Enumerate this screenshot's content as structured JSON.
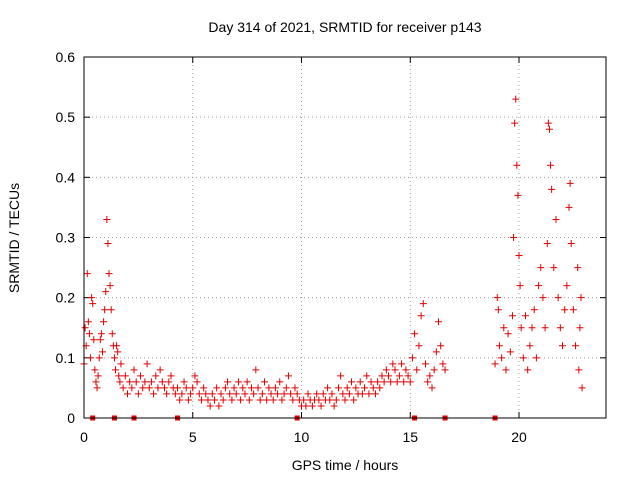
{
  "chart_data": {
    "type": "scatter",
    "title": "Day 314 of 2021, SRMTID for receiver p143",
    "xlabel": "GPS time / hours",
    "ylabel": "SRMTID / TECUs",
    "xlim": [
      0,
      24
    ],
    "ylim": [
      0,
      0.6
    ],
    "xticks": [
      0,
      5,
      10,
      15,
      20
    ],
    "xtick_labels": [
      "0",
      "5",
      "10",
      "15",
      "20"
    ],
    "yticks": [
      0,
      0.1,
      0.2,
      0.3,
      0.4,
      0.5,
      0.6
    ],
    "ytick_labels": [
      "0",
      "0.1",
      "0.2",
      "0.3",
      "0.4",
      "0.5",
      "0.6"
    ],
    "grid": true,
    "marker": "+",
    "color": "#e00000",
    "series": [
      {
        "name": "SRMTID",
        "points": [
          [
            0.0,
            0.09
          ],
          [
            0.05,
            0.15
          ],
          [
            0.1,
            0.12
          ],
          [
            0.15,
            0.24
          ],
          [
            0.2,
            0.16
          ],
          [
            0.25,
            0.14
          ],
          [
            0.3,
            0.1
          ],
          [
            0.35,
            0.2
          ],
          [
            0.4,
            0.19
          ],
          [
            0.45,
            0.13
          ],
          [
            0.5,
            0.08
          ],
          [
            0.55,
            0.06
          ],
          [
            0.6,
            0.05
          ],
          [
            0.65,
            0.07
          ],
          [
            0.7,
            0.1
          ],
          [
            0.75,
            0.13
          ],
          [
            0.8,
            0.14
          ],
          [
            0.85,
            0.11
          ],
          [
            0.9,
            0.16
          ],
          [
            0.95,
            0.18
          ],
          [
            1.0,
            0.21
          ],
          [
            1.05,
            0.33
          ],
          [
            1.1,
            0.29
          ],
          [
            1.15,
            0.24
          ],
          [
            1.2,
            0.22
          ],
          [
            1.25,
            0.18
          ],
          [
            1.3,
            0.14
          ],
          [
            1.35,
            0.12
          ],
          [
            1.4,
            0.1
          ],
          [
            1.45,
            0.08
          ],
          [
            1.5,
            0.12
          ],
          [
            1.55,
            0.11
          ],
          [
            1.6,
            0.07
          ],
          [
            1.65,
            0.06
          ],
          [
            1.7,
            0.09
          ],
          [
            1.8,
            0.05
          ],
          [
            1.9,
            0.07
          ],
          [
            2.0,
            0.04
          ],
          [
            2.1,
            0.06
          ],
          [
            2.2,
            0.05
          ],
          [
            2.3,
            0.08
          ],
          [
            2.4,
            0.06
          ],
          [
            2.5,
            0.04
          ],
          [
            2.6,
            0.07
          ],
          [
            2.7,
            0.05
          ],
          [
            2.8,
            0.06
          ],
          [
            2.9,
            0.09
          ],
          [
            3.0,
            0.05
          ],
          [
            3.1,
            0.06
          ],
          [
            3.2,
            0.04
          ],
          [
            3.3,
            0.07
          ],
          [
            3.4,
            0.05
          ],
          [
            3.5,
            0.08
          ],
          [
            3.6,
            0.06
          ],
          [
            3.7,
            0.05
          ],
          [
            3.8,
            0.04
          ],
          [
            3.9,
            0.06
          ],
          [
            4.0,
            0.07
          ],
          [
            4.1,
            0.05
          ],
          [
            4.2,
            0.04
          ],
          [
            4.3,
            0.05
          ],
          [
            4.4,
            0.03
          ],
          [
            4.5,
            0.04
          ],
          [
            4.6,
            0.06
          ],
          [
            4.7,
            0.05
          ],
          [
            4.8,
            0.03
          ],
          [
            4.9,
            0.04
          ],
          [
            5.0,
            0.05
          ],
          [
            5.1,
            0.07
          ],
          [
            5.2,
            0.06
          ],
          [
            5.3,
            0.04
          ],
          [
            5.4,
            0.03
          ],
          [
            5.5,
            0.05
          ],
          [
            5.6,
            0.04
          ],
          [
            5.7,
            0.03
          ],
          [
            5.8,
            0.02
          ],
          [
            5.9,
            0.04
          ],
          [
            6.0,
            0.03
          ],
          [
            6.1,
            0.05
          ],
          [
            6.2,
            0.02
          ],
          [
            6.3,
            0.04
          ],
          [
            6.4,
            0.03
          ],
          [
            6.5,
            0.05
          ],
          [
            6.6,
            0.06
          ],
          [
            6.7,
            0.04
          ],
          [
            6.8,
            0.03
          ],
          [
            6.9,
            0.05
          ],
          [
            7.0,
            0.04
          ],
          [
            7.1,
            0.06
          ],
          [
            7.2,
            0.03
          ],
          [
            7.3,
            0.05
          ],
          [
            7.4,
            0.04
          ],
          [
            7.5,
            0.06
          ],
          [
            7.6,
            0.03
          ],
          [
            7.7,
            0.05
          ],
          [
            7.8,
            0.04
          ],
          [
            7.9,
            0.08
          ],
          [
            8.0,
            0.05
          ],
          [
            8.1,
            0.03
          ],
          [
            8.2,
            0.04
          ],
          [
            8.3,
            0.06
          ],
          [
            8.4,
            0.03
          ],
          [
            8.5,
            0.05
          ],
          [
            8.6,
            0.04
          ],
          [
            8.7,
            0.03
          ],
          [
            8.8,
            0.05
          ],
          [
            8.9,
            0.04
          ],
          [
            9.0,
            0.06
          ],
          [
            9.1,
            0.03
          ],
          [
            9.2,
            0.04
          ],
          [
            9.3,
            0.05
          ],
          [
            9.4,
            0.07
          ],
          [
            9.5,
            0.04
          ],
          [
            9.6,
            0.03
          ],
          [
            9.7,
            0.05
          ],
          [
            9.8,
            0.04
          ],
          [
            9.9,
            0.03
          ],
          [
            10.0,
            0.02
          ],
          [
            10.1,
            0.03
          ],
          [
            10.2,
            0.02
          ],
          [
            10.3,
            0.04
          ],
          [
            10.4,
            0.03
          ],
          [
            10.5,
            0.02
          ],
          [
            10.6,
            0.03
          ],
          [
            10.7,
            0.04
          ],
          [
            10.8,
            0.03
          ],
          [
            10.9,
            0.02
          ],
          [
            11.0,
            0.04
          ],
          [
            11.1,
            0.03
          ],
          [
            11.2,
            0.05
          ],
          [
            11.3,
            0.03
          ],
          [
            11.4,
            0.04
          ],
          [
            11.5,
            0.02
          ],
          [
            11.6,
            0.03
          ],
          [
            11.7,
            0.05
          ],
          [
            11.8,
            0.07
          ],
          [
            11.9,
            0.04
          ],
          [
            12.0,
            0.03
          ],
          [
            12.1,
            0.05
          ],
          [
            12.2,
            0.04
          ],
          [
            12.3,
            0.06
          ],
          [
            12.4,
            0.03
          ],
          [
            12.5,
            0.05
          ],
          [
            12.6,
            0.04
          ],
          [
            12.7,
            0.06
          ],
          [
            12.8,
            0.04
          ],
          [
            12.9,
            0.05
          ],
          [
            13.0,
            0.07
          ],
          [
            13.1,
            0.04
          ],
          [
            13.2,
            0.06
          ],
          [
            13.3,
            0.05
          ],
          [
            13.4,
            0.04
          ],
          [
            13.5,
            0.06
          ],
          [
            13.6,
            0.05
          ],
          [
            13.7,
            0.07
          ],
          [
            13.8,
            0.06
          ],
          [
            13.9,
            0.08
          ],
          [
            14.0,
            0.07
          ],
          [
            14.1,
            0.06
          ],
          [
            14.2,
            0.09
          ],
          [
            14.3,
            0.08
          ],
          [
            14.4,
            0.06
          ],
          [
            14.5,
            0.07
          ],
          [
            14.6,
            0.09
          ],
          [
            14.7,
            0.06
          ],
          [
            14.8,
            0.08
          ],
          [
            14.9,
            0.07
          ],
          [
            15.0,
            0.06
          ],
          [
            15.1,
            0.1
          ],
          [
            15.2,
            0.14
          ],
          [
            15.3,
            0.08
          ],
          [
            15.4,
            0.12
          ],
          [
            15.5,
            0.17
          ],
          [
            15.6,
            0.19
          ],
          [
            15.7,
            0.09
          ],
          [
            15.8,
            0.06
          ],
          [
            15.9,
            0.07
          ],
          [
            16.0,
            0.05
          ],
          [
            16.1,
            0.08
          ],
          [
            16.2,
            0.11
          ],
          [
            16.3,
            0.16
          ],
          [
            16.4,
            0.12
          ],
          [
            16.5,
            0.09
          ],
          [
            16.6,
            0.08
          ],
          [
            18.9,
            0.09
          ],
          [
            19.0,
            0.2
          ],
          [
            19.05,
            0.18
          ],
          [
            19.1,
            0.12
          ],
          [
            19.2,
            0.1
          ],
          [
            19.3,
            0.15
          ],
          [
            19.4,
            0.08
          ],
          [
            19.5,
            0.14
          ],
          [
            19.6,
            0.11
          ],
          [
            19.7,
            0.17
          ],
          [
            19.75,
            0.3
          ],
          [
            19.8,
            0.49
          ],
          [
            19.85,
            0.53
          ],
          [
            19.9,
            0.42
          ],
          [
            19.95,
            0.37
          ],
          [
            20.0,
            0.27
          ],
          [
            20.05,
            0.22
          ],
          [
            20.1,
            0.15
          ],
          [
            20.2,
            0.1
          ],
          [
            20.3,
            0.17
          ],
          [
            20.4,
            0.08
          ],
          [
            20.5,
            0.12
          ],
          [
            20.6,
            0.15
          ],
          [
            20.7,
            0.18
          ],
          [
            20.8,
            0.1
          ],
          [
            20.9,
            0.22
          ],
          [
            21.0,
            0.25
          ],
          [
            21.1,
            0.2
          ],
          [
            21.2,
            0.15
          ],
          [
            21.3,
            0.29
          ],
          [
            21.35,
            0.49
          ],
          [
            21.4,
            0.48
          ],
          [
            21.45,
            0.42
          ],
          [
            21.5,
            0.38
          ],
          [
            21.6,
            0.25
          ],
          [
            21.7,
            0.33
          ],
          [
            21.8,
            0.2
          ],
          [
            21.9,
            0.15
          ],
          [
            22.0,
            0.12
          ],
          [
            22.1,
            0.18
          ],
          [
            22.2,
            0.22
          ],
          [
            22.3,
            0.35
          ],
          [
            22.35,
            0.39
          ],
          [
            22.4,
            0.29
          ],
          [
            22.5,
            0.18
          ],
          [
            22.6,
            0.12
          ],
          [
            22.7,
            0.25
          ],
          [
            22.75,
            0.08
          ],
          [
            22.8,
            0.15
          ],
          [
            22.85,
            0.2
          ],
          [
            22.9,
            0.05
          ]
        ]
      }
    ],
    "baseline_markers": [
      0.4,
      1.4,
      2.3,
      4.3,
      9.8,
      15.2,
      16.6,
      18.9
    ]
  }
}
